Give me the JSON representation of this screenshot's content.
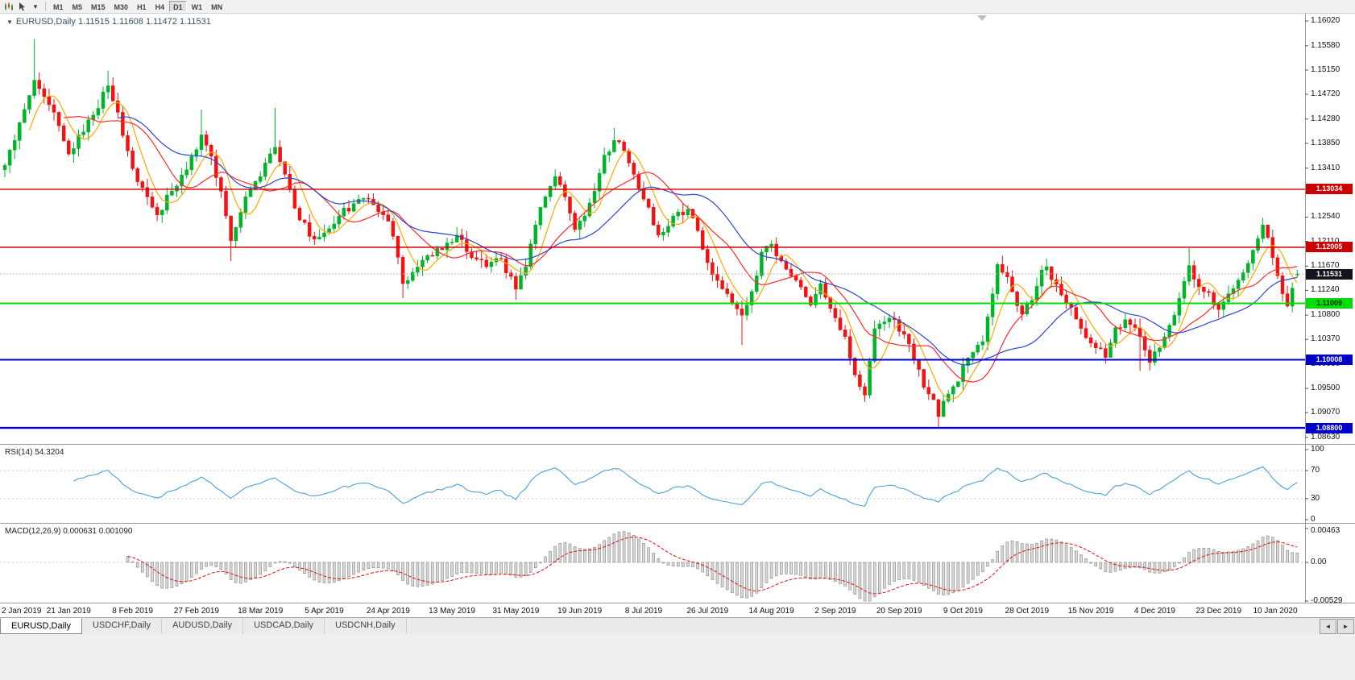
{
  "toolbar": {
    "icons": [
      "chart-icon",
      "cursor-icon",
      "dropdown-icon"
    ],
    "dropdown": "▾",
    "timeframes": [
      {
        "label": "M1",
        "active": false
      },
      {
        "label": "M5",
        "active": false
      },
      {
        "label": "M15",
        "active": false
      },
      {
        "label": "M30",
        "active": false
      },
      {
        "label": "H1",
        "active": false
      },
      {
        "label": "H4",
        "active": false
      },
      {
        "label": "D1",
        "active": true
      },
      {
        "label": "W1",
        "active": false
      },
      {
        "label": "MN",
        "active": false
      }
    ]
  },
  "chart": {
    "collapse_arrow": "▼",
    "symbol_period": "EURUSD,Daily",
    "ohlc": "1.11515 1.11608 1.11472 1.11531"
  },
  "price_axis": {
    "labels": [
      "1.16020",
      "1.15580",
      "1.15150",
      "1.14720",
      "1.14280",
      "1.13850",
      "1.13410",
      "1.12980",
      "1.12540",
      "1.12110",
      "1.11670",
      "1.11240",
      "1.10800",
      "1.10370",
      "1.09930",
      "1.09500",
      "1.09070",
      "1.08630"
    ]
  },
  "levels": [
    {
      "label": "1.13034",
      "price": 1.13034,
      "color": "#cc0000",
      "width": 1.4,
      "text": "#ffffff",
      "current": false
    },
    {
      "label": "1.12005",
      "price": 1.12005,
      "color": "#cc0000",
      "width": 1.4,
      "text": "#ffffff",
      "current": false
    },
    {
      "label": "1.11531",
      "price": 1.11531,
      "color": "#14141e",
      "width": 0,
      "text": "#ffffff",
      "current": true
    },
    {
      "label": "1.11009",
      "price": 1.11009,
      "color": "#00dd00",
      "width": 2,
      "text": "#002b00",
      "current": false
    },
    {
      "label": "1.10008",
      "price": 1.10008,
      "color": "#0000c8",
      "width": 2,
      "text": "#ffffff",
      "current": false
    },
    {
      "label": "1.08800",
      "price": 1.088,
      "color": "#0000c8",
      "width": 2.4,
      "text": "#ffffff",
      "current": false
    }
  ],
  "rsi_panel": {
    "label": "RSI(14) 54.3204",
    "axis_labels": [
      {
        "v": 100,
        "t": "100"
      },
      {
        "v": 70,
        "t": "70"
      },
      {
        "v": 30,
        "t": "30"
      },
      {
        "v": 0,
        "t": "0"
      }
    ]
  },
  "macd_panel": {
    "label": "MACD(12,26,9) 0.000631 0.001090",
    "axis_labels": [
      {
        "v": 0.00463,
        "t": "0.00463"
      },
      {
        "v": 0,
        "t": "0.00"
      },
      {
        "v": -0.00529,
        "t": "-0.00529"
      }
    ]
  },
  "date_axis": {
    "labels": [
      "2 Jan 2019",
      "21 Jan 2019",
      "8 Feb 2019",
      "27 Feb 2019",
      "18 Mar 2019",
      "5 Apr 2019",
      "24 Apr 2019",
      "13 May 2019",
      "31 May 2019",
      "19 Jun 2019",
      "8 Jul 2019",
      "26 Jul 2019",
      "14 Aug 2019",
      "2 Sep 2019",
      "20 Sep 2019",
      "9 Oct 2019",
      "28 Oct 2019",
      "15 Nov 2019",
      "4 Dec 2019",
      "23 Dec 2019",
      "10 Jan 2020"
    ]
  },
  "tabs": {
    "items": [
      {
        "label": "EURUSD,Daily",
        "active": true
      },
      {
        "label": "USDCHF,Daily",
        "active": false
      },
      {
        "label": "AUDUSD,Daily",
        "active": false
      },
      {
        "label": "USDCAD,Daily",
        "active": false
      },
      {
        "label": "USDCNH,Daily",
        "active": false
      }
    ],
    "scroll_left": "◄",
    "scroll_right": "►"
  },
  "chart_data": {
    "type": "candlestick",
    "symbol": "EURUSD",
    "timeframe": "Daily",
    "bar_count": 264,
    "bars_per_label": 13,
    "current_ohlc": {
      "open": 1.11515,
      "high": 1.11608,
      "low": 1.11472,
      "close": 1.11531
    },
    "price_scale": {
      "top": 1.1615,
      "bottom": 1.085
    },
    "up_color": "#00b42a",
    "down_color": "#f31212",
    "moving_averages": [
      {
        "period": 6,
        "color": "#ffa800"
      },
      {
        "period": 13,
        "color": "#ff2a2a"
      },
      {
        "period": 24,
        "color": "#2b47cf"
      }
    ],
    "close_anchors": [
      [
        0,
        1.1346
      ],
      [
        2,
        1.139
      ],
      [
        4,
        1.1445
      ],
      [
        6,
        1.1497
      ],
      [
        8,
        1.1468
      ],
      [
        10,
        1.144
      ],
      [
        13,
        1.1366
      ],
      [
        16,
        1.1405
      ],
      [
        18,
        1.1435
      ],
      [
        21,
        1.1487
      ],
      [
        23,
        1.144
      ],
      [
        26,
        1.134
      ],
      [
        29,
        1.129
      ],
      [
        31,
        1.1258
      ],
      [
        34,
        1.13
      ],
      [
        37,
        1.1338
      ],
      [
        40,
        1.14
      ],
      [
        42,
        1.1362
      ],
      [
        44,
        1.13
      ],
      [
        46,
        1.1212
      ],
      [
        49,
        1.129
      ],
      [
        52,
        1.1326
      ],
      [
        55,
        1.1378
      ],
      [
        57,
        1.133
      ],
      [
        59,
        1.127
      ],
      [
        62,
        1.122
      ],
      [
        65,
        1.1226
      ],
      [
        68,
        1.1256
      ],
      [
        71,
        1.1278
      ],
      [
        74,
        1.1286
      ],
      [
        77,
        1.1258
      ],
      [
        79,
        1.122
      ],
      [
        81,
        1.1136
      ],
      [
        83,
        1.1156
      ],
      [
        86,
        1.1186
      ],
      [
        89,
        1.1196
      ],
      [
        92,
        1.1222
      ],
      [
        95,
        1.1182
      ],
      [
        98,
        1.1166
      ],
      [
        101,
        1.118
      ],
      [
        104,
        1.1126
      ],
      [
        106,
        1.1166
      ],
      [
        108,
        1.124
      ],
      [
        110,
        1.129
      ],
      [
        112,
        1.1326
      ],
      [
        114,
        1.129
      ],
      [
        116,
        1.1232
      ],
      [
        118,
        1.1256
      ],
      [
        120,
        1.13
      ],
      [
        122,
        1.1364
      ],
      [
        124,
        1.139
      ],
      [
        126,
        1.1372
      ],
      [
        128,
        1.133
      ],
      [
        130,
        1.1286
      ],
      [
        133,
        1.1222
      ],
      [
        136,
        1.1256
      ],
      [
        139,
        1.1268
      ],
      [
        141,
        1.123
      ],
      [
        144,
        1.1152
      ],
      [
        147,
        1.1118
      ],
      [
        150,
        1.108
      ],
      [
        152,
        1.1122
      ],
      [
        154,
        1.1192
      ],
      [
        156,
        1.1206
      ],
      [
        158,
        1.1176
      ],
      [
        161,
        1.1142
      ],
      [
        164,
        1.1098
      ],
      [
        166,
        1.1136
      ],
      [
        168,
        1.1092
      ],
      [
        171,
        1.1042
      ],
      [
        173,
        1.0974
      ],
      [
        175,
        1.0938
      ],
      [
        177,
        1.1056
      ],
      [
        179,
        1.1068
      ],
      [
        181,
        1.1072
      ],
      [
        183,
        1.1046
      ],
      [
        185,
        1.1
      ],
      [
        187,
        1.0952
      ],
      [
        189,
        1.093
      ],
      [
        190,
        1.09
      ],
      [
        192,
        1.094
      ],
      [
        194,
        1.0962
      ],
      [
        196,
        1.1004
      ],
      [
        199,
        1.1033
      ],
      [
        202,
        1.117
      ],
      [
        204,
        1.1148
      ],
      [
        207,
        1.1082
      ],
      [
        209,
        1.1106
      ],
      [
        211,
        1.116
      ],
      [
        212,
        1.1166
      ],
      [
        214,
        1.1135
      ],
      [
        216,
        1.11
      ],
      [
        218,
        1.1073
      ],
      [
        220,
        1.104
      ],
      [
        222,
        1.1022
      ],
      [
        224,
        1.1005
      ],
      [
        226,
        1.1058
      ],
      [
        228,
        1.1072
      ],
      [
        230,
        1.1058
      ],
      [
        232,
        1.1018
      ],
      [
        233,
        1.0996
      ],
      [
        235,
        1.1022
      ],
      [
        237,
        1.1062
      ],
      [
        239,
        1.111
      ],
      [
        241,
        1.1168
      ],
      [
        243,
        1.113
      ],
      [
        245,
        1.112
      ],
      [
        247,
        1.109
      ],
      [
        249,
        1.1118
      ],
      [
        251,
        1.1142
      ],
      [
        253,
        1.1172
      ],
      [
        255,
        1.1216
      ],
      [
        256,
        1.124
      ],
      [
        257,
        1.1218
      ],
      [
        258,
        1.1182
      ],
      [
        259,
        1.115
      ],
      [
        260,
        1.1118
      ],
      [
        261,
        1.1096
      ],
      [
        262,
        1.1128
      ],
      [
        263,
        1.1153
      ]
    ],
    "wick_spikes": [
      {
        "day": 6,
        "high": 1.157
      },
      {
        "day": 21,
        "high": 1.1514
      },
      {
        "day": 40,
        "high": 1.1445
      },
      {
        "day": 46,
        "low": 1.1176
      },
      {
        "day": 55,
        "high": 1.1448
      },
      {
        "day": 81,
        "low": 1.111
      },
      {
        "day": 104,
        "low": 1.1107
      },
      {
        "day": 124,
        "high": 1.1412
      },
      {
        "day": 150,
        "low": 1.1027
      },
      {
        "day": 175,
        "low": 1.0926
      },
      {
        "day": 190,
        "low": 1.0879
      },
      {
        "day": 231,
        "low": 1.0981
      },
      {
        "day": 241,
        "high": 1.1199
      },
      {
        "day": 256,
        "high": 1.1245
      }
    ],
    "rsi": {
      "period": 14,
      "current": 54.3204,
      "color": "#4f9fd8",
      "levels": [
        30,
        70
      ]
    },
    "macd": {
      "fast": 12,
      "slow": 26,
      "signal": 9,
      "current_macd": 0.000631,
      "current_signal": 0.00109,
      "histogram_color": "#d8d8d8",
      "histogram_border": "#858585",
      "signal_color": "#e01010",
      "range": {
        "max": 0.00463,
        "min": -0.00529
      }
    }
  }
}
